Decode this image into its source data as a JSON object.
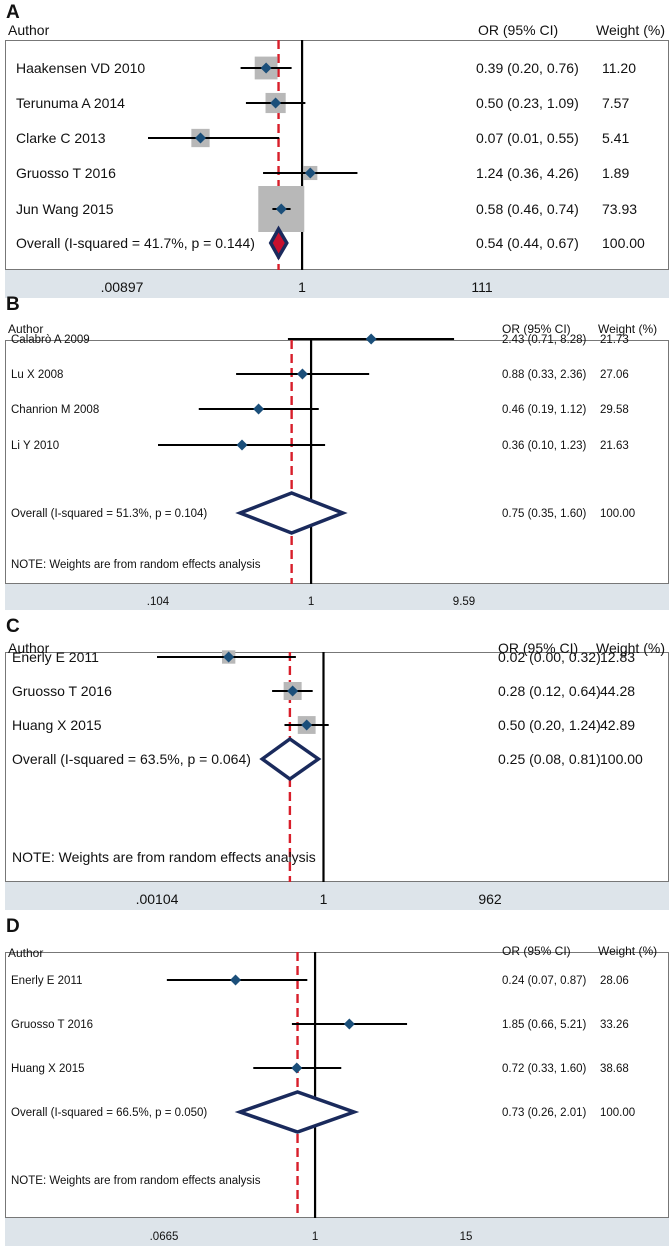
{
  "chart_data": [
    {
      "type": "forest",
      "panel_label": "A",
      "col_author": "Author",
      "col_or": "OR (95% CI)",
      "col_weight": "Weight (%)",
      "xscale": "log",
      "xlim": [
        0.00897,
        111
      ],
      "ticks": [
        ".00897",
        "1",
        "111"
      ],
      "tick_values": [
        0.00897,
        1,
        111
      ],
      "reference_line": 1,
      "pooled_estimate_line": 0.54,
      "note": "",
      "studies": [
        {
          "author": "Haakensen VD 2010",
          "or": 0.39,
          "lo": 0.2,
          "hi": 0.76,
          "ci_text": "0.39 (0.20, 0.76)",
          "weight": "11.20",
          "w": 11.2
        },
        {
          "author": "Terunuma A 2014",
          "or": 0.5,
          "lo": 0.23,
          "hi": 1.09,
          "ci_text": "0.50 (0.23, 1.09)",
          "weight": "7.57",
          "w": 7.57
        },
        {
          "author": "Clarke C 2013",
          "or": 0.07,
          "lo": 0.01,
          "hi": 0.55,
          "ci_text": "0.07 (0.01, 0.55)",
          "weight": "5.41",
          "w": 5.41
        },
        {
          "author": "Gruosso T 2016",
          "or": 1.24,
          "lo": 0.36,
          "hi": 4.26,
          "ci_text": "1.24 (0.36, 4.26)",
          "weight": "1.89",
          "w": 1.89
        },
        {
          "author": "Jun Wang 2015",
          "or": 0.58,
          "lo": 0.46,
          "hi": 0.74,
          "ci_text": "0.58 (0.46, 0.74)",
          "weight": "73.93",
          "w": 73.93
        }
      ],
      "overall": {
        "label": "Overall  (I-squared = 41.7%, p = 0.144)",
        "or": 0.54,
        "lo": 0.44,
        "hi": 0.67,
        "ci_text": "0.54 (0.44, 0.67)",
        "weight": "100.00"
      }
    },
    {
      "type": "forest",
      "panel_label": "B",
      "col_author": "Author",
      "col_or": "OR (95% CI)",
      "col_weight": "Weight (%)",
      "xscale": "log",
      "xlim": [
        0.104,
        9.59
      ],
      "ticks": [
        ".104",
        "1",
        "9.59"
      ],
      "tick_values": [
        0.104,
        1,
        9.59
      ],
      "reference_line": 1,
      "pooled_estimate_line": 0.75,
      "note": "NOTE: Weights are from random effects analysis",
      "studies": [
        {
          "author": "Calabrò A 2009",
          "or": 2.43,
          "lo": 0.71,
          "hi": 8.28,
          "ci_text": "2.43 (0.71, 8.28)",
          "weight": "21.73",
          "w": 21.73
        },
        {
          "author": "Lu X 2008",
          "or": 0.88,
          "lo": 0.33,
          "hi": 2.36,
          "ci_text": "0.88 (0.33, 2.36)",
          "weight": "27.06",
          "w": 27.06
        },
        {
          "author": "Chanrion M 2008",
          "or": 0.46,
          "lo": 0.19,
          "hi": 1.12,
          "ci_text": "0.46 (0.19, 1.12)",
          "weight": "29.58",
          "w": 29.58
        },
        {
          "author": "Li Y 2010",
          "or": 0.36,
          "lo": 0.1,
          "hi": 1.23,
          "ci_text": "0.36 (0.10, 1.23)",
          "weight": "21.63",
          "w": 21.63
        }
      ],
      "overall": {
        "label": "Overall  (I-squared = 51.3%, p = 0.104)",
        "or": 0.75,
        "lo": 0.35,
        "hi": 1.6,
        "ci_text": "0.75 (0.35, 1.60)",
        "weight": "100.00"
      }
    },
    {
      "type": "forest",
      "panel_label": "C",
      "col_author": "Author",
      "col_or": "OR (95% CI)",
      "col_weight": "Weight (%)",
      "xscale": "log",
      "xlim": [
        0.00104,
        962
      ],
      "ticks": [
        ".00104",
        "1",
        "962"
      ],
      "tick_values": [
        0.00104,
        1,
        962
      ],
      "reference_line": 1,
      "pooled_estimate_line": 0.25,
      "note": "NOTE: Weights are from random effects analysis",
      "studies": [
        {
          "author": "Enerly E 2011",
          "or": 0.02,
          "lo": 0.0,
          "hi": 0.32,
          "ci_text": "0.02 (0.00, 0.32)",
          "weight": "12.83",
          "w": 12.83
        },
        {
          "author": "Gruosso T 2016",
          "or": 0.28,
          "lo": 0.12,
          "hi": 0.64,
          "ci_text": "0.28 (0.12, 0.64)",
          "weight": "44.28",
          "w": 44.28
        },
        {
          "author": "Huang X 2015",
          "or": 0.5,
          "lo": 0.2,
          "hi": 1.24,
          "ci_text": "0.50 (0.20, 1.24)",
          "weight": "42.89",
          "w": 42.89
        }
      ],
      "overall": {
        "label": "Overall  (I-squared = 63.5%, p = 0.064)",
        "or": 0.25,
        "lo": 0.08,
        "hi": 0.81,
        "ci_text": "0.25 (0.08, 0.81)",
        "weight": "100.00"
      }
    },
    {
      "type": "forest",
      "panel_label": "D",
      "col_author": "Author",
      "col_or": "OR (95% CI)",
      "col_weight": "Weight (%)",
      "xscale": "log",
      "xlim": [
        0.0665,
        15
      ],
      "ticks": [
        ".0665",
        "1",
        "15"
      ],
      "tick_values": [
        0.0665,
        1,
        15
      ],
      "reference_line": 1,
      "pooled_estimate_line": 0.73,
      "note": "NOTE: Weights are from random effects analysis",
      "studies": [
        {
          "author": "Enerly E 2011",
          "or": 0.24,
          "lo": 0.07,
          "hi": 0.87,
          "ci_text": "0.24 (0.07, 0.87)",
          "weight": "28.06",
          "w": 28.06
        },
        {
          "author": "Gruosso T 2016",
          "or": 1.85,
          "lo": 0.66,
          "hi": 5.21,
          "ci_text": "1.85 (0.66, 5.21)",
          "weight": "33.26",
          "w": 33.26
        },
        {
          "author": "Huang X 2015",
          "or": 0.72,
          "lo": 0.33,
          "hi": 1.6,
          "ci_text": "0.72 (0.33, 1.60)",
          "weight": "38.68",
          "w": 38.68
        }
      ],
      "overall": {
        "label": "Overall  (I-squared = 66.5%, p = 0.050)",
        "or": 0.73,
        "lo": 0.26,
        "hi": 2.01,
        "ci_text": "0.73 (0.26, 2.01)",
        "weight": "100.00"
      }
    }
  ],
  "colors": {
    "marker": "#1b4f7a",
    "overall_outline": "#1a2a5c",
    "overall_fill_A": "#c8102e",
    "pooled_line": "#d81e2a",
    "weight_box": "#b8b8b8",
    "axis_bar": "#dde4ea",
    "line": "#000000"
  }
}
